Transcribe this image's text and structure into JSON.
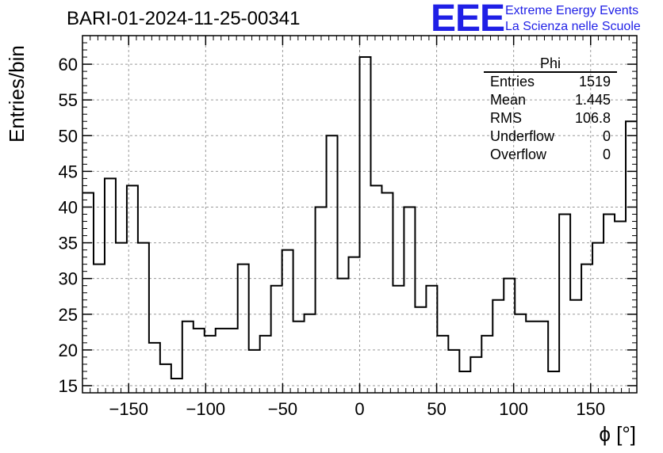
{
  "title": "BARI-01-2024-11-25-00341",
  "logo": {
    "mark": "EEE",
    "line1": "Extreme Energy Events",
    "line2": "La Scienza nelle Scuole",
    "color": "#1f1fe6"
  },
  "stats": {
    "name": "Phi",
    "rows": [
      {
        "label": "Entries",
        "value": "1519"
      },
      {
        "label": "Mean",
        "value": "1.445"
      },
      {
        "label": "RMS",
        "value": "106.8"
      },
      {
        "label": "Underflow",
        "value": "0"
      },
      {
        "label": "Overflow",
        "value": "0"
      }
    ]
  },
  "chart_data": {
    "type": "histogram",
    "xlabel": "ϕ [°]",
    "ylabel": "Entries/bin",
    "xlim": [
      -180,
      180
    ],
    "ylim": [
      14,
      64
    ],
    "xticks": [
      -150,
      -100,
      -50,
      0,
      50,
      100,
      150
    ],
    "yticks": [
      15,
      20,
      25,
      30,
      35,
      40,
      45,
      50,
      55,
      60
    ],
    "bin_width": 7.2,
    "values": [
      42,
      32,
      44,
      35,
      43,
      35,
      21,
      18,
      16,
      24,
      23,
      22,
      23,
      23,
      32,
      20,
      22,
      29,
      34,
      24,
      25,
      40,
      50,
      30,
      33,
      61,
      43,
      42,
      29,
      40,
      26,
      29,
      22,
      20,
      17,
      19,
      22,
      27,
      30,
      25,
      24,
      24,
      17,
      39,
      27,
      32,
      35,
      39,
      38,
      52
    ],
    "grid": true,
    "line_color": "#000000"
  }
}
